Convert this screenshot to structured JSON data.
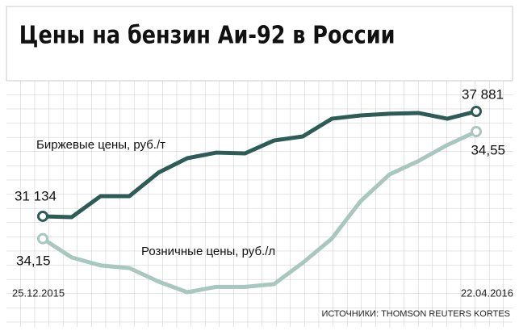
{
  "chart_data": {
    "type": "line",
    "title": "Цены на бензин Аи-92 в России",
    "source": "ИСТОЧНИКИ: THOMSON REUTERS KORTES",
    "categories": [
      "25.12.2015",
      null,
      null,
      null,
      null,
      null,
      null,
      null,
      null,
      null,
      null,
      null,
      null,
      null,
      null,
      "22.04.2016"
    ],
    "grid": true,
    "series": [
      {
        "name": "Биржевые цены, руб./т",
        "color": "#2d5b57",
        "values": [
          31134,
          31080,
          32430,
          32430,
          33940,
          34870,
          35230,
          35180,
          36010,
          36270,
          37410,
          37620,
          37730,
          37780,
          37410,
          37881
        ],
        "value_labels": [
          "31 134",
          null,
          null,
          null,
          null,
          null,
          null,
          null,
          null,
          null,
          null,
          null,
          null,
          null,
          null,
          "37 881"
        ]
      },
      {
        "name": "Розничные цены, руб./л",
        "color": "#a8c7bf",
        "values": [
          34.15,
          34.08,
          34.05,
          34.04,
          33.99,
          33.95,
          33.97,
          33.97,
          33.98,
          34.06,
          34.15,
          34.29,
          34.39,
          34.44,
          34.5,
          34.55
        ],
        "value_labels": [
          "34,15",
          null,
          null,
          null,
          null,
          null,
          null,
          null,
          null,
          null,
          null,
          null,
          null,
          null,
          null,
          "34,55"
        ]
      }
    ]
  }
}
